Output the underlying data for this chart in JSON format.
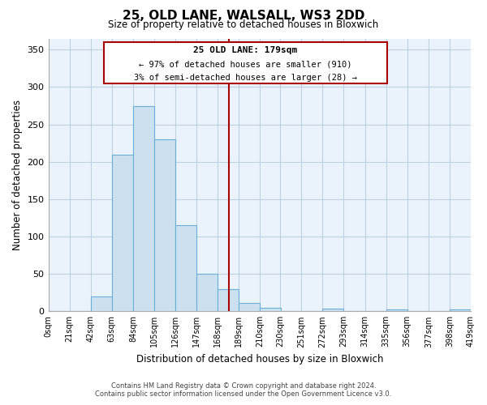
{
  "title": "25, OLD LANE, WALSALL, WS3 2DD",
  "subtitle": "Size of property relative to detached houses in Bloxwich",
  "xlabel": "Distribution of detached houses by size in Bloxwich",
  "ylabel": "Number of detached properties",
  "bar_color": "#cce0f0",
  "bar_edge_color": "#6aafd6",
  "background_color": "#ffffff",
  "plot_bg_color": "#eaf3fb",
  "grid_color": "#c0d0e0",
  "vline_x": 179,
  "vline_color": "#aa0000",
  "annotation_title": "25 OLD LANE: 179sqm",
  "annotation_line1": "← 97% of detached houses are smaller (910)",
  "annotation_line2": "3% of semi-detached houses are larger (28) →",
  "bin_edges": [
    0,
    21,
    42,
    63,
    84,
    105,
    126,
    147,
    168,
    189,
    210,
    230,
    251,
    272,
    293,
    314,
    335,
    356,
    377,
    398,
    419
  ],
  "bin_counts": [
    0,
    0,
    20,
    210,
    275,
    230,
    115,
    50,
    30,
    11,
    5,
    0,
    0,
    4,
    0,
    0,
    2,
    0,
    0,
    2
  ],
  "yticks": [
    0,
    50,
    100,
    150,
    200,
    250,
    300,
    350
  ],
  "ylim": [
    0,
    365
  ],
  "footer_line1": "Contains HM Land Registry data © Crown copyright and database right 2024.",
  "footer_line2": "Contains public sector information licensed under the Open Government Licence v3.0."
}
